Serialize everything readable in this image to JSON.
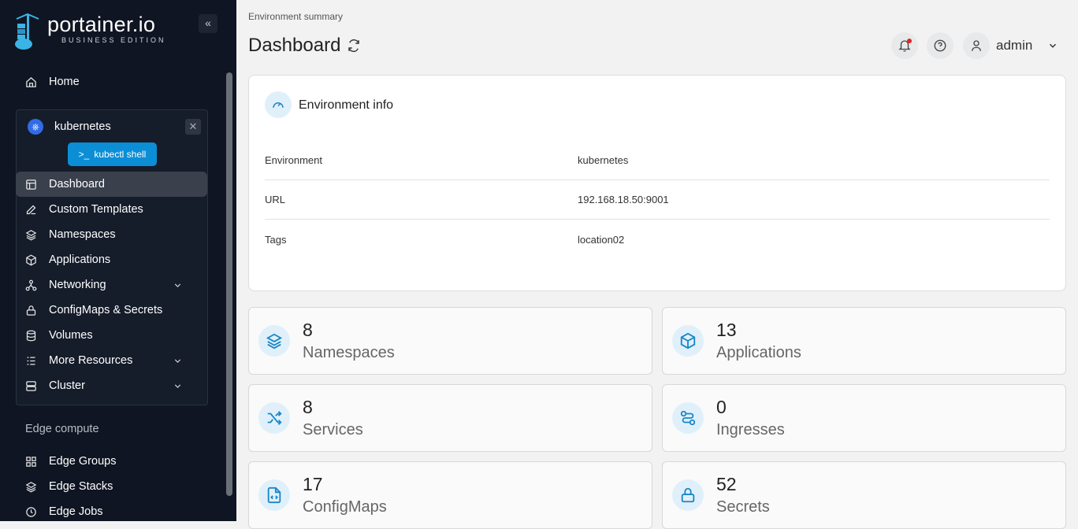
{
  "brand": {
    "name": "portainer.io",
    "edition": "BUSINESS EDITION"
  },
  "sidebar": {
    "home": "Home",
    "environment": {
      "name": "kubernetes",
      "shell_button": "kubectl shell"
    },
    "items": [
      {
        "label": "Dashboard",
        "active": true
      },
      {
        "label": "Custom Templates"
      },
      {
        "label": "Namespaces"
      },
      {
        "label": "Applications"
      },
      {
        "label": "Networking",
        "expandable": true
      },
      {
        "label": "ConfigMaps & Secrets"
      },
      {
        "label": "Volumes"
      },
      {
        "label": "More Resources",
        "expandable": true
      },
      {
        "label": "Cluster",
        "expandable": true
      }
    ],
    "section": "Edge compute",
    "edge_items": [
      {
        "label": "Edge Groups"
      },
      {
        "label": "Edge Stacks"
      },
      {
        "label": "Edge Jobs"
      }
    ]
  },
  "header": {
    "breadcrumb": "Environment summary",
    "title": "Dashboard",
    "user": "admin"
  },
  "env_info": {
    "title": "Environment info",
    "rows": [
      {
        "label": "Environment",
        "value": "kubernetes"
      },
      {
        "label": "URL",
        "value": "192.168.18.50:9001"
      },
      {
        "label": "Tags",
        "value": "location02"
      }
    ]
  },
  "stats": [
    {
      "value": "8",
      "label": "Namespaces"
    },
    {
      "value": "13",
      "label": "Applications"
    },
    {
      "value": "8",
      "label": "Services"
    },
    {
      "value": "0",
      "label": "Ingresses"
    },
    {
      "value": "17",
      "label": "ConfigMaps"
    },
    {
      "value": "52",
      "label": "Secrets"
    }
  ],
  "colors": {
    "accent": "#1a86c7",
    "sidebar": "#0f1522",
    "notification_dot": "#e02424"
  }
}
